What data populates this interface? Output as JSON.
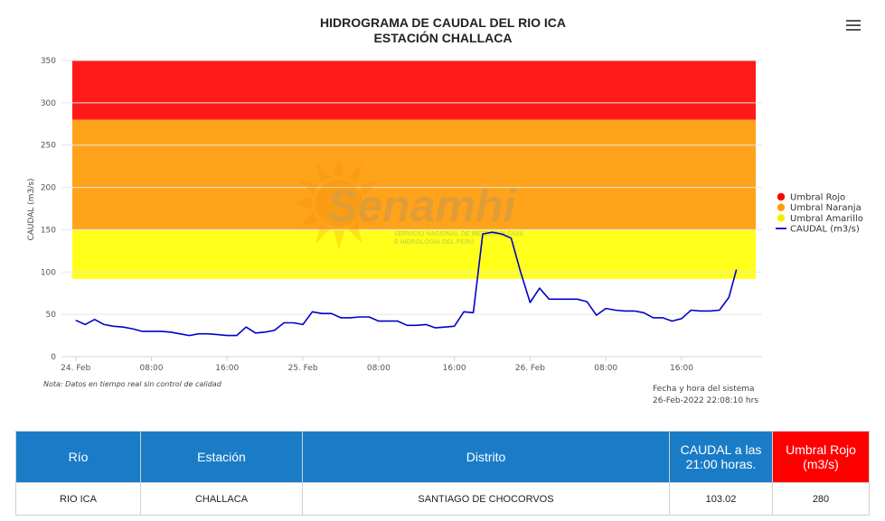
{
  "chart_data": {
    "type": "line",
    "title": "HIDROGRAMA DE CAUDAL DEL RIO ICA",
    "subtitle": "ESTACIÓN CHALLACA",
    "ylabel": "CAUDAL (m3/s)",
    "xlabel": "",
    "ylim": [
      0,
      350
    ],
    "yticks": [
      0,
      50,
      100,
      150,
      200,
      250,
      300,
      350
    ],
    "xticks": [
      "24. Feb",
      "08:00",
      "16:00",
      "25. Feb",
      "08:00",
      "16:00",
      "26. Feb",
      "08:00",
      "16:00"
    ],
    "xtick_hours": [
      0,
      8,
      16,
      24,
      32,
      40,
      48,
      56,
      64
    ],
    "xlim_hours": [
      -1.5,
      72.5
    ],
    "legend_position": "right",
    "thresholds": [
      {
        "name": "Umbral Rojo",
        "from": 280,
        "to": 350,
        "color": "#ff1a1a"
      },
      {
        "name": "Umbral Naranja",
        "from": 150,
        "to": 280,
        "color": "#ffa31a"
      },
      {
        "name": "Umbral Amarillo",
        "from": 92,
        "to": 150,
        "color": "#ffff1a"
      }
    ],
    "series": [
      {
        "name": "CAUDAL (m3/s)",
        "color": "#0000cc",
        "x_hours": [
          0,
          1,
          2,
          3,
          4,
          5,
          6,
          7,
          8,
          9,
          10,
          11,
          12,
          13,
          14,
          15,
          16,
          17,
          18,
          19,
          20,
          21,
          22,
          23,
          24,
          25,
          26,
          27,
          28,
          29,
          30,
          31,
          32,
          33,
          34,
          35,
          36,
          37,
          38,
          39,
          40,
          41,
          42,
          43,
          44,
          45,
          46,
          47,
          48,
          49,
          50,
          51,
          52,
          53,
          54,
          55,
          56,
          57,
          58,
          59,
          60,
          61,
          62,
          63,
          64,
          65,
          66,
          67,
          68,
          69,
          69.8
        ],
        "values": [
          43,
          38,
          44,
          38,
          36,
          35,
          33,
          30,
          30,
          30,
          29,
          27,
          25,
          27,
          27,
          26,
          25,
          25,
          35,
          28,
          29,
          31,
          40,
          40,
          38,
          53,
          51,
          51,
          46,
          46,
          47,
          47,
          42,
          42,
          42,
          37,
          37,
          38,
          34,
          35,
          36,
          53,
          52,
          145,
          147,
          145,
          140,
          100,
          64,
          81,
          68,
          68,
          68,
          68,
          65,
          49,
          57,
          55,
          54,
          54,
          52,
          46,
          46,
          42,
          45,
          55,
          54,
          54,
          55,
          70,
          103
        ]
      }
    ]
  },
  "ui": {
    "menu_icon": "hamburger-menu-icon"
  },
  "watermark": {
    "brand": "Senamhi",
    "line1": "SERVICIO NACIONAL DE METEOROLOGÍA",
    "line2": "E HIDROLOGÍA DEL PERÚ"
  },
  "note": "Nota: Datos en tiempo real sin control de calidad",
  "system_time": {
    "label": "Fecha y hora del sistema",
    "value": "26-Feb-2022 22:08:10 hrs"
  },
  "table": {
    "headers": [
      "Río",
      "Estación",
      "Distrito",
      "CAUDAL a las 21:00 horas.",
      "Umbral Rojo (m3/s)"
    ],
    "row": [
      "RIO ICA",
      "CHALLACA",
      "SANTIAGO DE CHOCORVOS",
      "103.02",
      "280"
    ]
  }
}
